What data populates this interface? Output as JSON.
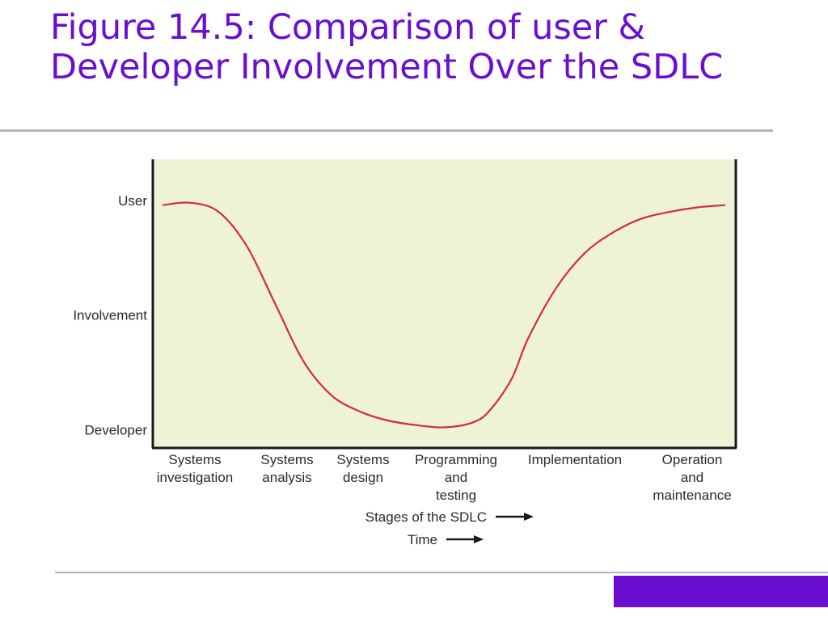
{
  "slide": {
    "title": "Figure 14.5: Comparison of user & Developer Involvement Over the SDLC"
  },
  "colors": {
    "title": "#6a0fd0",
    "accent": "#6a0fd0",
    "plot_background": "#eef3d6",
    "curve": "#d62b3a",
    "axis": "#1a1a1a"
  },
  "chart_data": {
    "type": "line",
    "title": "",
    "y_axis": {
      "ticks": [
        {
          "label": "User",
          "value": 1.0
        },
        {
          "label": "Involvement",
          "value": 0.5
        },
        {
          "label": "Developer",
          "value": 0.0
        }
      ],
      "ylim": [
        -0.08,
        1.18
      ]
    },
    "x_axis": {
      "categories": [
        "Systems\ninvestigation",
        "Systems\nanalysis",
        "Systems\ndesign",
        "Programming\nand\ntesting",
        "Implementation",
        "Operation\nand\nmaintenance"
      ],
      "label_stages": "Stages of the SDLC",
      "label_time": "Time"
    },
    "series": [
      {
        "x": [
          0.0,
          0.05,
          0.1,
          0.15,
          0.2,
          0.25,
          0.3,
          0.35,
          0.4,
          0.45,
          0.5,
          0.55,
          0.58,
          0.62,
          0.65,
          0.7,
          0.75,
          0.8,
          0.85,
          0.9,
          0.95,
          1.0
        ],
        "y": [
          0.98,
          0.99,
          0.95,
          0.8,
          0.55,
          0.3,
          0.15,
          0.08,
          0.04,
          0.02,
          0.01,
          0.03,
          0.08,
          0.22,
          0.4,
          0.62,
          0.77,
          0.86,
          0.92,
          0.95,
          0.97,
          0.98
        ]
      }
    ],
    "grid": false
  }
}
